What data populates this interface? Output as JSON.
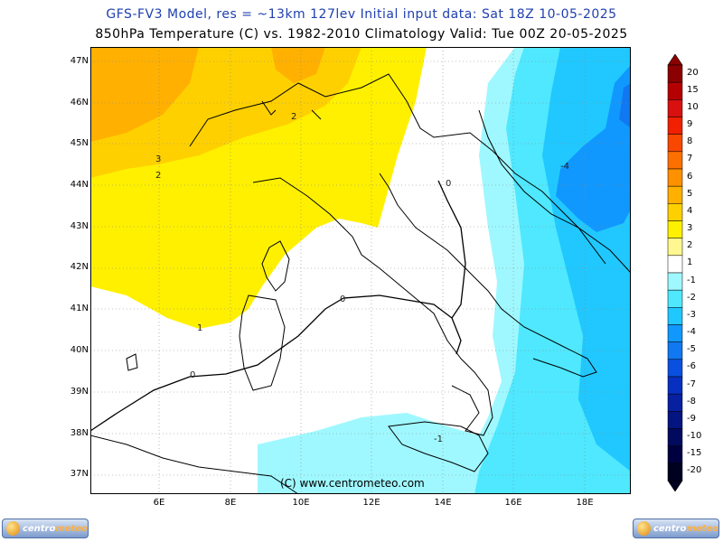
{
  "header": {
    "line1": "GFS-FV3 Model, res = ~13km 127lev   Initial input data: Sat 18Z 10-05-2025",
    "line2": "850hPa Temperature (C) vs. 1982-2010 Climatology  Valid: Tue 00Z 20-05-2025"
  },
  "map": {
    "lat_labels": [
      "47N",
      "46N",
      "45N",
      "44N",
      "43N",
      "42N",
      "41N",
      "40N",
      "39N",
      "38N",
      "37N"
    ],
    "lon_labels": [
      "6E",
      "8E",
      "10E",
      "12E",
      "14E",
      "16E",
      "18E"
    ],
    "contour_labels": [
      "2",
      "3",
      "2",
      "1",
      "0",
      "0",
      "0",
      "-1",
      "-4"
    ],
    "copyright": "(C) www.centrometeo.com"
  },
  "colorbar": {
    "labels": [
      "20",
      "15",
      "10",
      "9",
      "8",
      "7",
      "6",
      "5",
      "4",
      "3",
      "2",
      "1",
      "-1",
      "-2",
      "-3",
      "-4",
      "-5",
      "-6",
      "-7",
      "-8",
      "-9",
      "-10",
      "-15",
      "-20"
    ],
    "colors": [
      "#8b0000",
      "#b40000",
      "#d81010",
      "#f02000",
      "#f84800",
      "#fc7000",
      "#ff9000",
      "#ffb000",
      "#ffd000",
      "#fff000",
      "#fff890",
      "#ffffff",
      "#9ff8ff",
      "#4fe8ff",
      "#20c8ff",
      "#1098ff",
      "#1078f0",
      "#0a50e0",
      "#0830c0",
      "#0620a0",
      "#041480",
      "#020a60",
      "#000040",
      "#000020"
    ]
  },
  "logos": {
    "left": {
      "brand_a": "centro",
      "brand_b": "meteo"
    },
    "right": {
      "brand_a": "centro",
      "brand_b": "meteo"
    }
  }
}
